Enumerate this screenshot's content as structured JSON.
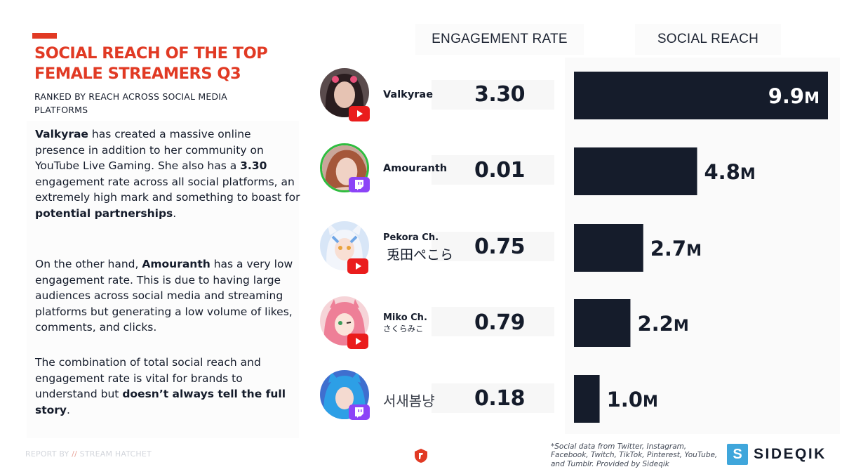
{
  "header": {
    "title": "SOCIAL REACH OF THE TOP FEMALE STREAMERS Q3",
    "subtitle": "RANKED BY REACH ACROSS SOCIAL MEDIA PLATFORMS",
    "accent_color": "#e13a24"
  },
  "body_text": {
    "p1": [
      {
        "text": "Valkyrae",
        "bold": true
      },
      {
        "text": " has created a massive online presence in addition to her community on YouTube Live Gaming. She also has a ",
        "bold": false
      },
      {
        "text": "3.30",
        "bold": true
      },
      {
        "text": " engagement rate across all social platforms, an extremely high mark and something to boast for ",
        "bold": false
      },
      {
        "text": "potential partnerships",
        "bold": true
      },
      {
        "text": ".",
        "bold": false
      }
    ],
    "p2": [
      {
        "text": "On the other hand, ",
        "bold": false
      },
      {
        "text": "Amouranth",
        "bold": true
      },
      {
        "text": " has a very low engagement rate. This is due to having large audiences across social media and streaming platforms but generating a low volume of likes, comments, and clicks.",
        "bold": false
      }
    ],
    "p3": [
      {
        "text": "The combination of total social reach and engagement rate is vital for brands to understand but ",
        "bold": false
      },
      {
        "text": "doesn’t always tell the full story",
        "bold": true
      },
      {
        "text": ".",
        "bold": false
      }
    ]
  },
  "columns": {
    "engagement": "ENGAGEMENT RATE",
    "reach": "SOCIAL REACH"
  },
  "streamers": [
    {
      "name": "Valkyrae",
      "subname": "",
      "platform": "youtube",
      "platform_icon": "youtube-icon",
      "engagement": "3.30",
      "reach_label": "9.9",
      "unit": "M"
    },
    {
      "name": "Amouranth",
      "subname": "",
      "platform": "twitch",
      "platform_icon": "twitch-icon",
      "engagement": "0.01",
      "reach_label": "4.8",
      "unit": "M"
    },
    {
      "name": "Pekora Ch.",
      "subname": "兎田ぺこら",
      "platform": "youtube",
      "platform_icon": "youtube-icon",
      "engagement": "0.75",
      "reach_label": "2.7",
      "unit": "M"
    },
    {
      "name": "Miko Ch.",
      "subname": "さくらみこ",
      "platform": "youtube",
      "platform_icon": "youtube-icon",
      "engagement": "0.79",
      "reach_label": "2.2",
      "unit": "M"
    },
    {
      "name": "",
      "subname": "서새봄냥",
      "platform": "twitch",
      "platform_icon": "twitch-icon",
      "engagement": "0.18",
      "reach_label": "1.0",
      "unit": "M"
    }
  ],
  "chart_data": {
    "type": "bar",
    "orientation": "horizontal",
    "title": "SOCIAL REACH",
    "categories": [
      "Valkyrae",
      "Amouranth",
      "Pekora Ch. 兎田ぺこら",
      "Miko Ch. さくらみこ",
      "서새봄냥"
    ],
    "values": [
      9.9,
      4.8,
      2.7,
      2.2,
      1.0
    ],
    "unit": "M",
    "xlim": [
      0,
      9.9
    ],
    "bar_color": "#151c2b",
    "grid": false,
    "secondary_series": {
      "name": "ENGAGEMENT RATE",
      "values": [
        3.3,
        0.01,
        0.75,
        0.79,
        0.18
      ]
    }
  },
  "footer": {
    "report_by": "REPORT BY",
    "slashes": "//",
    "brand": "STREAM HATCHET",
    "note": "*Social data from Twitter, Instagram, Facebook, Twitch, TikTok, Pinterest, YouTube, and Tumblr. Provided by Sideqik",
    "sponsor_mark": "S",
    "sponsor": "SIDEQIK",
    "sponsor_color": "#3fa6db"
  }
}
